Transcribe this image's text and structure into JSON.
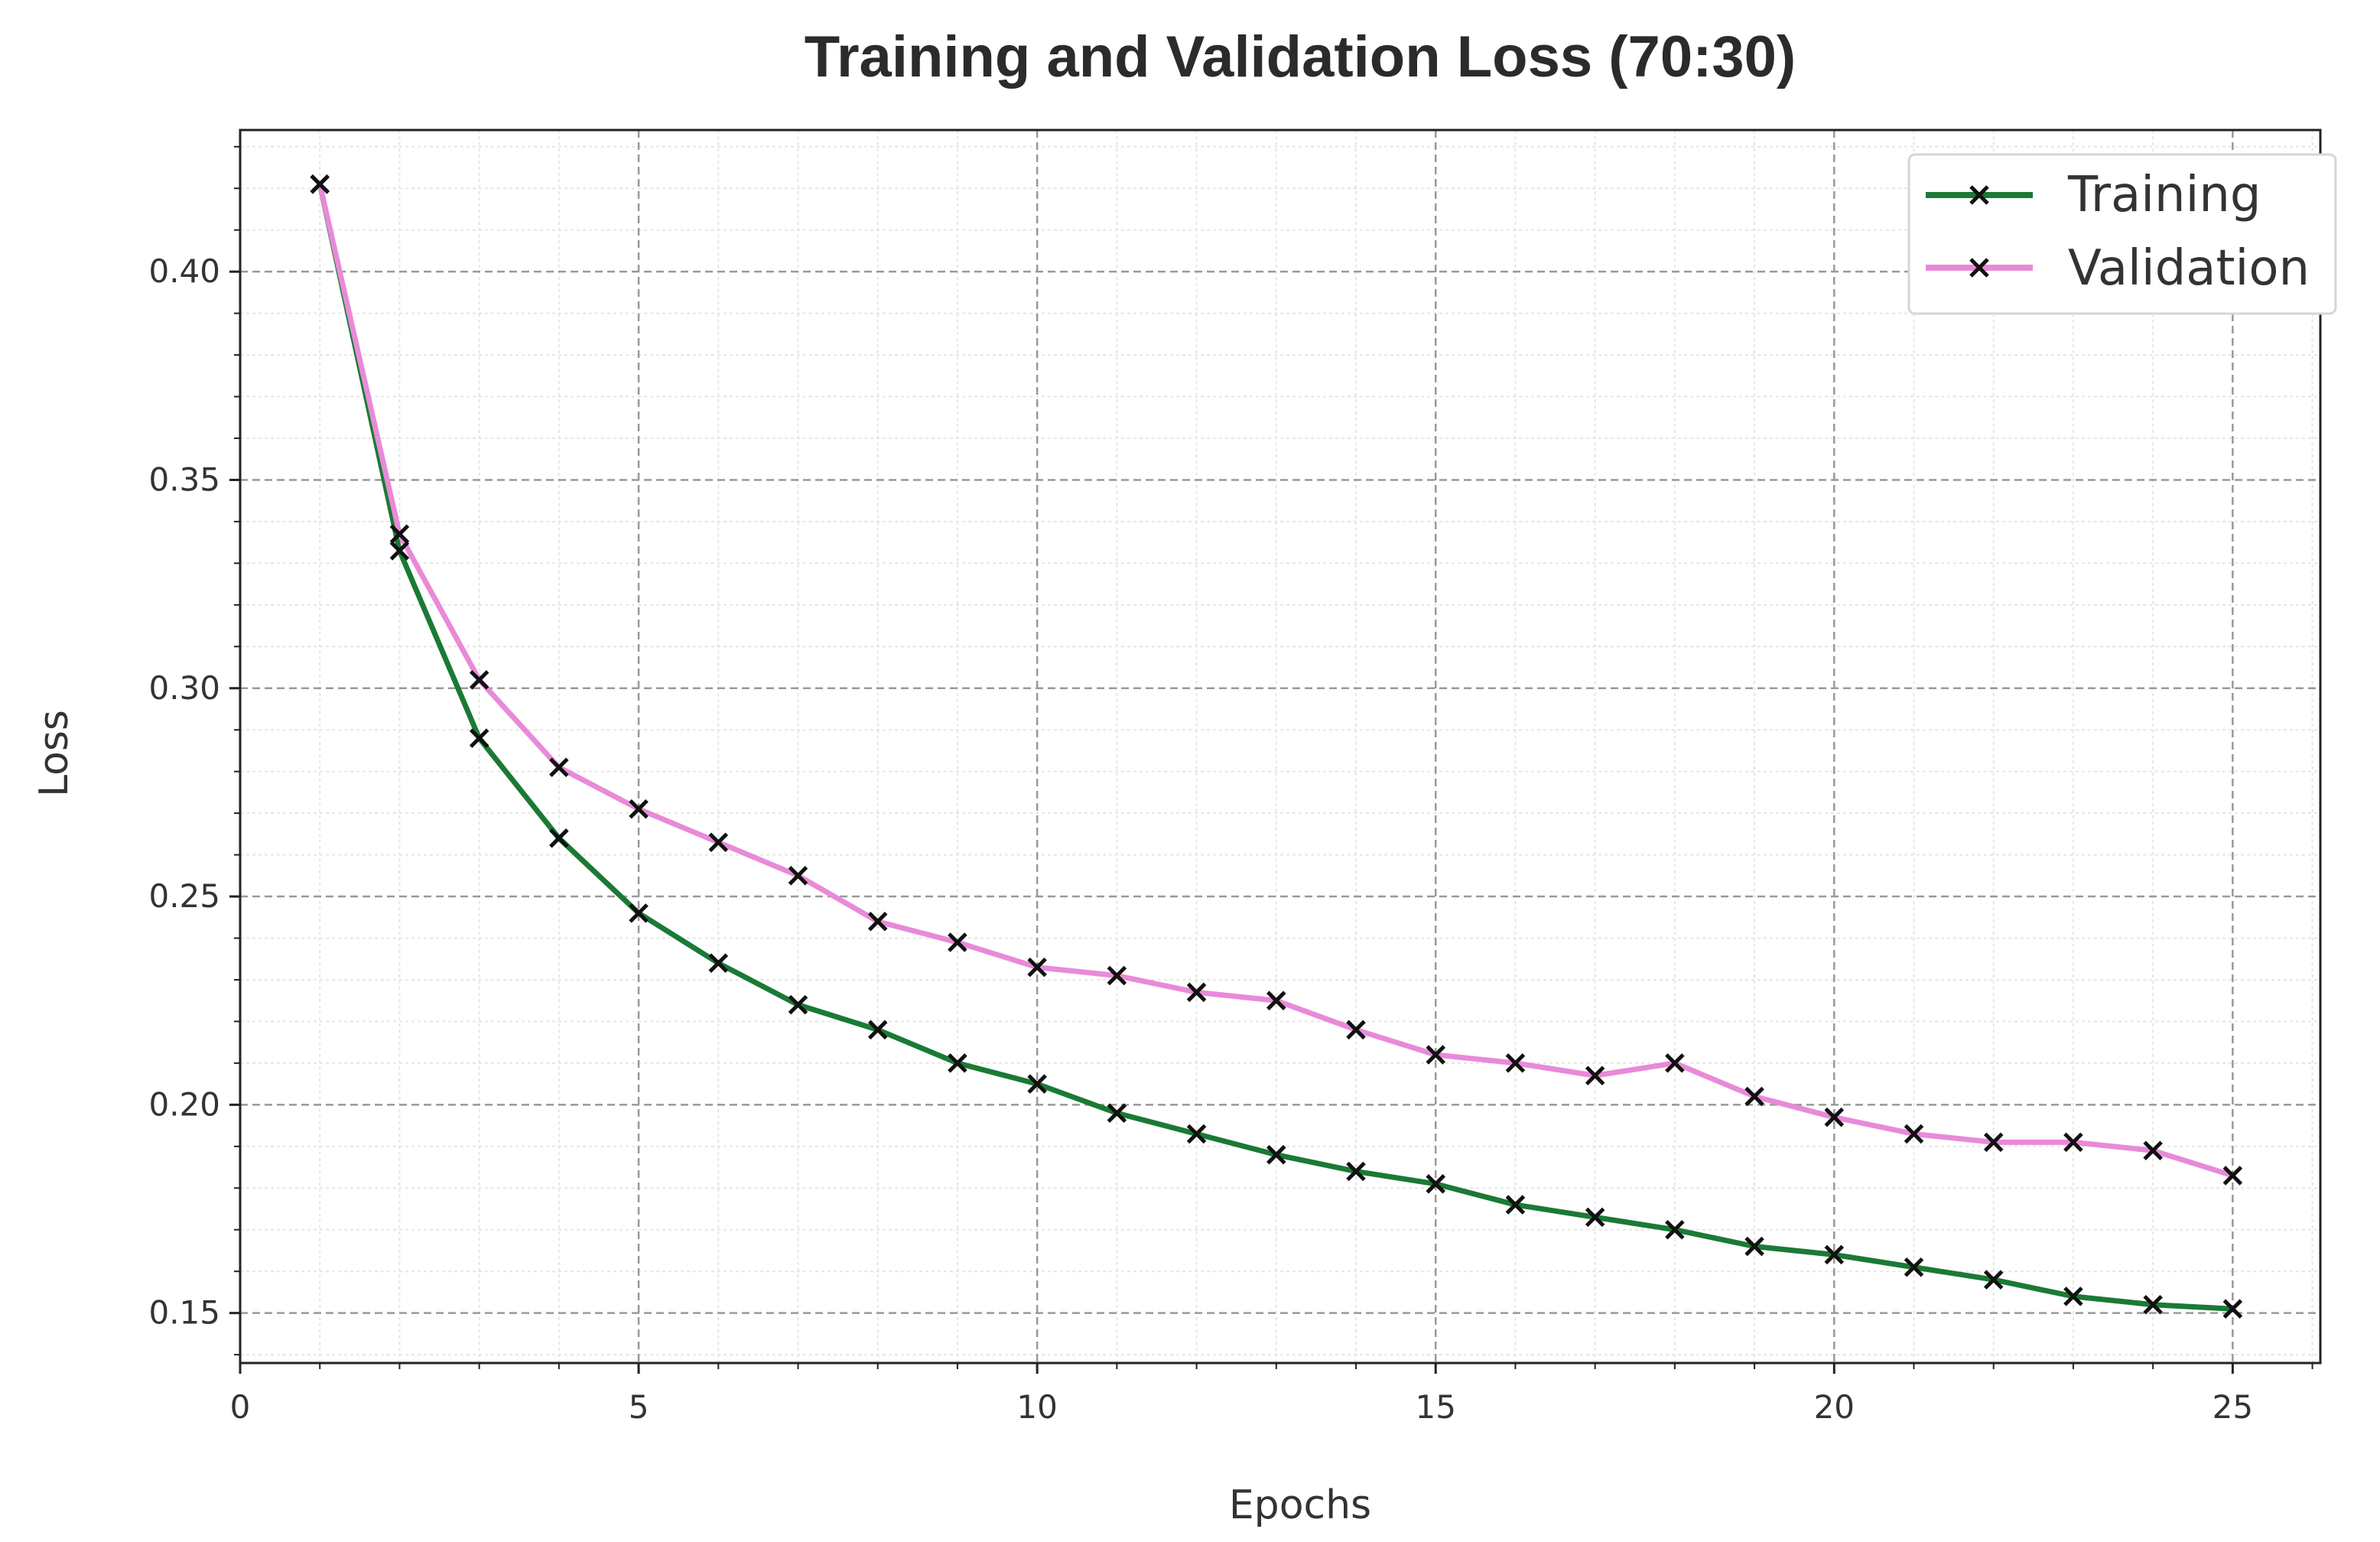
{
  "chart_data": {
    "type": "line",
    "title": "Training and Validation Loss (70:30)",
    "xlabel": "Epochs",
    "ylabel": "Loss",
    "xlim": [
      0,
      26.1
    ],
    "ylim": [
      0.138,
      0.434
    ],
    "xticks": [
      0,
      5,
      10,
      15,
      20,
      25
    ],
    "xtick_labels": [
      "0",
      "5",
      "10",
      "15",
      "20",
      "25"
    ],
    "yticks": [
      0.15,
      0.2,
      0.25,
      0.3,
      0.35,
      0.4
    ],
    "ytick_labels": [
      "0.15",
      "0.20",
      "0.25",
      "0.30",
      "0.35",
      "0.40"
    ],
    "grid": true,
    "legend_position": "top-right",
    "x": [
      1,
      2,
      3,
      4,
      5,
      6,
      7,
      8,
      9,
      10,
      11,
      12,
      13,
      14,
      15,
      16,
      17,
      18,
      19,
      20,
      21,
      22,
      23,
      24,
      25
    ],
    "series": [
      {
        "name": "Training",
        "color": "#1a7a34",
        "marker": "x",
        "values": [
          0.421,
          0.333,
          0.288,
          0.264,
          0.246,
          0.234,
          0.224,
          0.218,
          0.21,
          0.205,
          0.198,
          0.193,
          0.188,
          0.184,
          0.181,
          0.176,
          0.173,
          0.17,
          0.166,
          0.164,
          0.161,
          0.158,
          0.154,
          0.152,
          0.151
        ]
      },
      {
        "name": "Validation",
        "color": "#e88ad8",
        "marker": "x",
        "values": [
          0.421,
          0.337,
          0.302,
          0.281,
          0.271,
          0.263,
          0.255,
          0.244,
          0.239,
          0.233,
          0.231,
          0.227,
          0.225,
          0.218,
          0.212,
          0.21,
          0.207,
          0.21,
          0.202,
          0.197,
          0.193,
          0.191,
          0.191,
          0.189,
          0.183
        ]
      }
    ]
  }
}
